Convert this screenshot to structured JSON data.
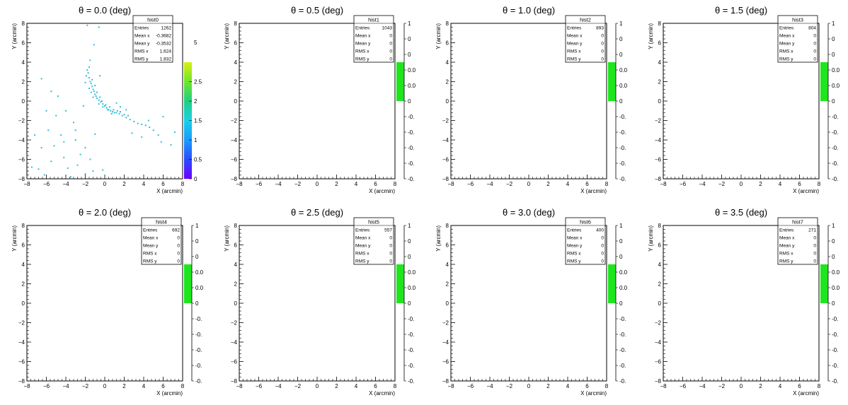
{
  "chart_data": [
    {
      "type": "heatmap",
      "title": "θ =  0.0 (deg)",
      "xlabel": "X (arcmin)",
      "ylabel": "Y (arcmin)",
      "xlim": [
        -8,
        8
      ],
      "ylim": [
        -8,
        8
      ],
      "xticks": [
        "−8",
        "−6",
        "−4",
        "−2",
        "0",
        "2",
        "4",
        "6",
        "8"
      ],
      "yticks": [
        "−8",
        "−6",
        "−4",
        "−2",
        "0",
        "2",
        "4",
        "6",
        "8"
      ],
      "colorbar": {
        "min": 0,
        "max": 3,
        "ticks": [
          "0",
          "0.5",
          "1",
          "1.5",
          "2",
          "2.5"
        ]
      },
      "stats": {
        "name": "hist0",
        "rows": [
          {
            "label": "Entries",
            "value": "1262"
          },
          {
            "label": "Mean x",
            "value": "-0.3682"
          },
          {
            "label": "Mean y",
            "value": "-0.3532"
          },
          {
            "label": "RMS x",
            "value": "1.624"
          },
          {
            "label": "RMS y",
            "value": "1.832"
          }
        ]
      },
      "points": [
        [
          -1.5,
          2.0
        ],
        [
          -1.4,
          1.8
        ],
        [
          -1.3,
          1.5
        ],
        [
          -1.2,
          1.2
        ],
        [
          -1.1,
          1.0
        ],
        [
          -1.0,
          0.7
        ],
        [
          -0.9,
          0.5
        ],
        [
          -0.8,
          0.3
        ],
        [
          -0.6,
          0.1
        ],
        [
          -0.4,
          -0.1
        ],
        [
          -0.2,
          -0.3
        ],
        [
          0.0,
          -0.5
        ],
        [
          0.2,
          -0.7
        ],
        [
          0.4,
          -0.9
        ],
        [
          0.6,
          -1.0
        ],
        [
          0.8,
          -1.1
        ],
        [
          1.0,
          -1.2
        ],
        [
          1.2,
          -1.2
        ],
        [
          1.5,
          -1.3
        ],
        [
          1.8,
          -1.5
        ],
        [
          2.2,
          -1.7
        ],
        [
          2.6,
          -1.9
        ],
        [
          3.0,
          -2.1
        ],
        [
          3.4,
          -2.3
        ],
        [
          3.8,
          -2.4
        ],
        [
          4.2,
          -2.5
        ],
        [
          4.6,
          -2.7
        ],
        [
          5.0,
          -3.0
        ],
        [
          -1.6,
          2.4
        ],
        [
          -1.7,
          2.9
        ],
        [
          -1.6,
          3.5
        ],
        [
          -1.5,
          4.2
        ],
        [
          -1.8,
          3.2
        ],
        [
          -1.9,
          2.6
        ],
        [
          -1.3,
          2.2
        ],
        [
          -1.0,
          1.6
        ],
        [
          -0.8,
          0.9
        ],
        [
          -0.5,
          0.4
        ],
        [
          -0.3,
          0.0
        ],
        [
          0.1,
          -0.4
        ],
        [
          0.5,
          -0.6
        ],
        [
          0.9,
          -0.9
        ],
        [
          1.3,
          -1.0
        ],
        [
          1.6,
          -1.1
        ],
        [
          2.0,
          -1.4
        ],
        [
          2.4,
          -1.5
        ],
        [
          -0.6,
          -0.3
        ],
        [
          -0.2,
          -0.6
        ],
        [
          0.3,
          -0.9
        ],
        [
          0.7,
          -1.3
        ],
        [
          -1.2,
          0.4
        ],
        [
          -1.4,
          0.9
        ],
        [
          -1.6,
          1.3
        ],
        [
          -2.0,
          1.9
        ],
        [
          -1.1,
          5.8
        ],
        [
          -0.6,
          7.6
        ],
        [
          -1.8,
          7.8
        ],
        [
          1.2,
          -0.2
        ],
        [
          1.6,
          -0.6
        ],
        [
          2.2,
          -0.9
        ],
        [
          -6.5,
          2.3
        ],
        [
          -5.5,
          1.0
        ],
        [
          -4.8,
          0.5
        ],
        [
          -6.0,
          -1.0
        ],
        [
          -5.0,
          -1.5
        ],
        [
          -4.5,
          -3.5
        ],
        [
          -3.0,
          -3.0
        ],
        [
          -5.2,
          -4.6
        ],
        [
          -4.2,
          -5.8
        ],
        [
          -2.0,
          -4.8
        ],
        [
          -1.5,
          -6.0
        ],
        [
          -2.8,
          -6.6
        ],
        [
          -3.8,
          -6.9
        ],
        [
          -5.5,
          -6.2
        ],
        [
          -6.8,
          -7.0
        ],
        [
          -1.2,
          -7.2
        ],
        [
          -0.2,
          -7.1
        ],
        [
          -2.5,
          -5.5
        ],
        [
          -3.2,
          -2.2
        ],
        [
          -4.0,
          -1.0
        ],
        [
          -2.2,
          -0.5
        ],
        [
          -7.2,
          -3.5
        ],
        [
          -6.5,
          -4.8
        ],
        [
          5.8,
          -4.2
        ],
        [
          6.8,
          -4.5
        ],
        [
          7.2,
          -3.2
        ],
        [
          5.5,
          -3.5
        ],
        [
          3.8,
          -3.7
        ],
        [
          6.0,
          -1.6
        ],
        [
          4.5,
          -2.0
        ],
        [
          -3.5,
          -7.8
        ],
        [
          -6.2,
          -7.6
        ],
        [
          -7.5,
          -6.8
        ],
        [
          -4.2,
          -4.2
        ],
        [
          -5.8,
          -3.0
        ],
        [
          -2.0,
          -7.5
        ],
        [
          -3.0,
          -4.0
        ],
        [
          -1.0,
          -3.4
        ],
        [
          2.8,
          -3.3
        ],
        [
          -0.5,
          2.6
        ]
      ]
    },
    {
      "type": "heatmap",
      "title": "θ =  0.5 (deg)",
      "xlabel": "X (arcmin)",
      "ylabel": "Y (arcmin)",
      "xlim": [
        -8,
        8
      ],
      "ylim": [
        -8,
        8
      ],
      "xticks": [
        "−8",
        "−6",
        "−4",
        "−2",
        "0",
        "2",
        "4",
        "6",
        "8"
      ],
      "yticks": [
        "−8",
        "−6",
        "−4",
        "−2",
        "0",
        "2",
        "4",
        "6",
        "8"
      ],
      "colorbar": {
        "min": -1,
        "max": 1,
        "ticks": [
          "1",
          "0",
          "0",
          "0.0",
          "0.0",
          "0",
          "-0.",
          "-0.",
          "-0.",
          "-0.",
          "-0."
        ]
      },
      "stats": {
        "name": "hist1",
        "rows": [
          {
            "label": "Entries",
            "value": "1043"
          },
          {
            "label": "Mean x",
            "value": "0"
          },
          {
            "label": "Mean y",
            "value": "0"
          },
          {
            "label": "RMS x",
            "value": "0"
          },
          {
            "label": "RMS y",
            "value": "0"
          }
        ]
      },
      "points": []
    },
    {
      "type": "heatmap",
      "title": "θ =  1.0 (deg)",
      "xlabel": "X (arcmin)",
      "ylabel": "Y (arcmin)",
      "xlim": [
        -8,
        8
      ],
      "ylim": [
        -8,
        8
      ],
      "xticks": [
        "−8",
        "−6",
        "−4",
        "−2",
        "0",
        "2",
        "4",
        "6",
        "8"
      ],
      "yticks": [
        "−8",
        "−6",
        "−4",
        "−2",
        "0",
        "2",
        "4",
        "6",
        "8"
      ],
      "colorbar": {
        "min": -1,
        "max": 1,
        "ticks": [
          "1",
          "0",
          "0",
          "0.0",
          "0.0",
          "0",
          "-0.",
          "-0.",
          "-0.",
          "-0.",
          "-0."
        ]
      },
      "stats": {
        "name": "hist2",
        "rows": [
          {
            "label": "Entries",
            "value": "893"
          },
          {
            "label": "Mean x",
            "value": "0"
          },
          {
            "label": "Mean y",
            "value": "0"
          },
          {
            "label": "RMS x",
            "value": "0"
          },
          {
            "label": "RMS y",
            "value": "0"
          }
        ]
      },
      "points": []
    },
    {
      "type": "heatmap",
      "title": "θ =  1.5 (deg)",
      "xlabel": "X (arcmin)",
      "ylabel": "Y (arcmin)",
      "xlim": [
        -8,
        8
      ],
      "ylim": [
        -8,
        8
      ],
      "xticks": [
        "−8",
        "−6",
        "−4",
        "−2",
        "0",
        "2",
        "4",
        "6",
        "8"
      ],
      "yticks": [
        "−8",
        "−6",
        "−4",
        "−2",
        "0",
        "2",
        "4",
        "6",
        "8"
      ],
      "colorbar": {
        "min": -1,
        "max": 1,
        "ticks": [
          "1",
          "0",
          "0",
          "0.0",
          "0.0",
          "0",
          "-0.",
          "-0.",
          "-0.",
          "-0.",
          "-0."
        ]
      },
      "stats": {
        "name": "hist3",
        "rows": [
          {
            "label": "Entries",
            "value": "804"
          },
          {
            "label": "Mean x",
            "value": "0"
          },
          {
            "label": "Mean y",
            "value": "0"
          },
          {
            "label": "RMS x",
            "value": "0"
          },
          {
            "label": "RMS y",
            "value": "0"
          }
        ]
      },
      "points": []
    },
    {
      "type": "heatmap",
      "title": "θ =  2.0 (deg)",
      "xlabel": "X (arcmin)",
      "ylabel": "Y (arcmin)",
      "xlim": [
        -8,
        8
      ],
      "ylim": [
        -8,
        8
      ],
      "xticks": [
        "−8",
        "−6",
        "−4",
        "−2",
        "0",
        "2",
        "4",
        "6",
        "8"
      ],
      "yticks": [
        "−8",
        "−6",
        "−4",
        "−2",
        "0",
        "2",
        "4",
        "6",
        "8"
      ],
      "colorbar": {
        "min": -1,
        "max": 1,
        "ticks": [
          "1",
          "0",
          "0",
          "0.0",
          "0.0",
          "0",
          "-0.",
          "-0.",
          "-0.",
          "-0.",
          "-0."
        ]
      },
      "stats": {
        "name": "hist4",
        "rows": [
          {
            "label": "Entries",
            "value": "692"
          },
          {
            "label": "Mean x",
            "value": "0"
          },
          {
            "label": "Mean y",
            "value": "0"
          },
          {
            "label": "RMS x",
            "value": "0"
          },
          {
            "label": "RMS y",
            "value": "0"
          }
        ]
      },
      "points": []
    },
    {
      "type": "heatmap",
      "title": "θ =  2.5 (deg)",
      "xlabel": "X (arcmin)",
      "ylabel": "Y (arcmin)",
      "xlim": [
        -8,
        8
      ],
      "ylim": [
        -8,
        8
      ],
      "xticks": [
        "−8",
        "−6",
        "−4",
        "−2",
        "0",
        "2",
        "4",
        "6",
        "8"
      ],
      "yticks": [
        "−8",
        "−6",
        "−4",
        "−2",
        "0",
        "2",
        "4",
        "6",
        "8"
      ],
      "colorbar": {
        "min": -1,
        "max": 1,
        "ticks": [
          "1",
          "0",
          "0",
          "0.0",
          "0.0",
          "0",
          "-0.",
          "-0.",
          "-0.",
          "-0.",
          "-0."
        ]
      },
      "stats": {
        "name": "hist5",
        "rows": [
          {
            "label": "Entries",
            "value": "557"
          },
          {
            "label": "Mean x",
            "value": "0"
          },
          {
            "label": "Mean y",
            "value": "0"
          },
          {
            "label": "RMS x",
            "value": "0"
          },
          {
            "label": "RMS y",
            "value": "0"
          }
        ]
      },
      "points": []
    },
    {
      "type": "heatmap",
      "title": "θ =  3.0 (deg)",
      "xlabel": "X (arcmin)",
      "ylabel": "Y (arcmin)",
      "xlim": [
        -8,
        8
      ],
      "ylim": [
        -8,
        8
      ],
      "xticks": [
        "−8",
        "−6",
        "−4",
        "−2",
        "0",
        "2",
        "4",
        "6",
        "8"
      ],
      "yticks": [
        "−8",
        "−6",
        "−4",
        "−2",
        "0",
        "2",
        "4",
        "6",
        "8"
      ],
      "colorbar": {
        "min": -1,
        "max": 1,
        "ticks": [
          "1",
          "0",
          "0",
          "0.0",
          "0.0",
          "0",
          "-0.",
          "-0.",
          "-0.",
          "-0.",
          "-0."
        ]
      },
      "stats": {
        "name": "hist6",
        "rows": [
          {
            "label": "Entries",
            "value": "400"
          },
          {
            "label": "Mean x",
            "value": "0"
          },
          {
            "label": "Mean y",
            "value": "0"
          },
          {
            "label": "RMS x",
            "value": "0"
          },
          {
            "label": "RMS y",
            "value": "0"
          }
        ]
      },
      "points": []
    },
    {
      "type": "heatmap",
      "title": "θ =  3.5 (deg)",
      "xlabel": "X (arcmin)",
      "ylabel": "Y (arcmin)",
      "xlim": [
        -8,
        8
      ],
      "ylim": [
        -8,
        8
      ],
      "xticks": [
        "−8",
        "−6",
        "−4",
        "−2",
        "0",
        "2",
        "4",
        "6",
        "8"
      ],
      "yticks": [
        "−8",
        "−6",
        "−4",
        "−2",
        "0",
        "2",
        "4",
        "6",
        "8"
      ],
      "colorbar": {
        "min": -1,
        "max": 1,
        "ticks": [
          "1",
          "0",
          "0",
          "0.0",
          "0.0",
          "0",
          "-0.",
          "-0.",
          "-0.",
          "-0.",
          "-0."
        ]
      },
      "stats": {
        "name": "hist7",
        "rows": [
          {
            "label": "Entries",
            "value": "271"
          },
          {
            "label": "Mean x",
            "value": "0"
          },
          {
            "label": "Mean y",
            "value": "0"
          },
          {
            "label": "RMS x",
            "value": "0"
          },
          {
            "label": "RMS y",
            "value": "0"
          }
        ]
      },
      "points": []
    }
  ],
  "colors": {
    "points": "#2bbfd9",
    "empty_fill": "#1ee61e",
    "colorbar_stops": [
      "#6b00ff",
      "#2a4bff",
      "#1a9bff",
      "#1ad0e6",
      "#20d080",
      "#6ee62a",
      "#d8f012"
    ]
  }
}
